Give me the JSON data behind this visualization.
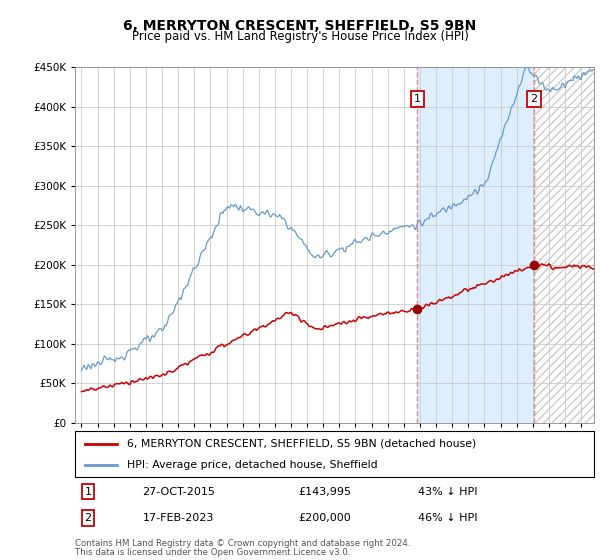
{
  "title": "6, MERRYTON CRESCENT, SHEFFIELD, S5 9BN",
  "subtitle": "Price paid vs. HM Land Registry's House Price Index (HPI)",
  "hpi_label": "HPI: Average price, detached house, Sheffield",
  "property_label": "6, MERRYTON CRESCENT, SHEFFIELD, S5 9BN (detached house)",
  "footnote1": "Contains HM Land Registry data © Crown copyright and database right 2024.",
  "footnote2": "This data is licensed under the Open Government Licence v3.0.",
  "transaction1_date": "27-OCT-2015",
  "transaction1_price": "£143,995",
  "transaction1_hpi": "43% ↓ HPI",
  "transaction2_date": "17-FEB-2023",
  "transaction2_price": "£200,000",
  "transaction2_hpi": "46% ↓ HPI",
  "hpi_color": "#6699cc",
  "property_color": "#cc0000",
  "vline_color": "#dd8888",
  "marker1_color": "#990000",
  "marker2_color": "#990000",
  "ylim_min": 0,
  "ylim_max": 450000,
  "yticks": [
    0,
    50000,
    100000,
    150000,
    200000,
    250000,
    300000,
    350000,
    400000,
    450000
  ],
  "background_color": "#ffffff",
  "grid_color": "#cccccc",
  "shade_between_color": "#ddeeff",
  "t1_year": 2015.833,
  "t2_year": 2023.083,
  "t1_price": 143995,
  "t2_price": 200000,
  "xstart": 1995,
  "xend": 2026
}
